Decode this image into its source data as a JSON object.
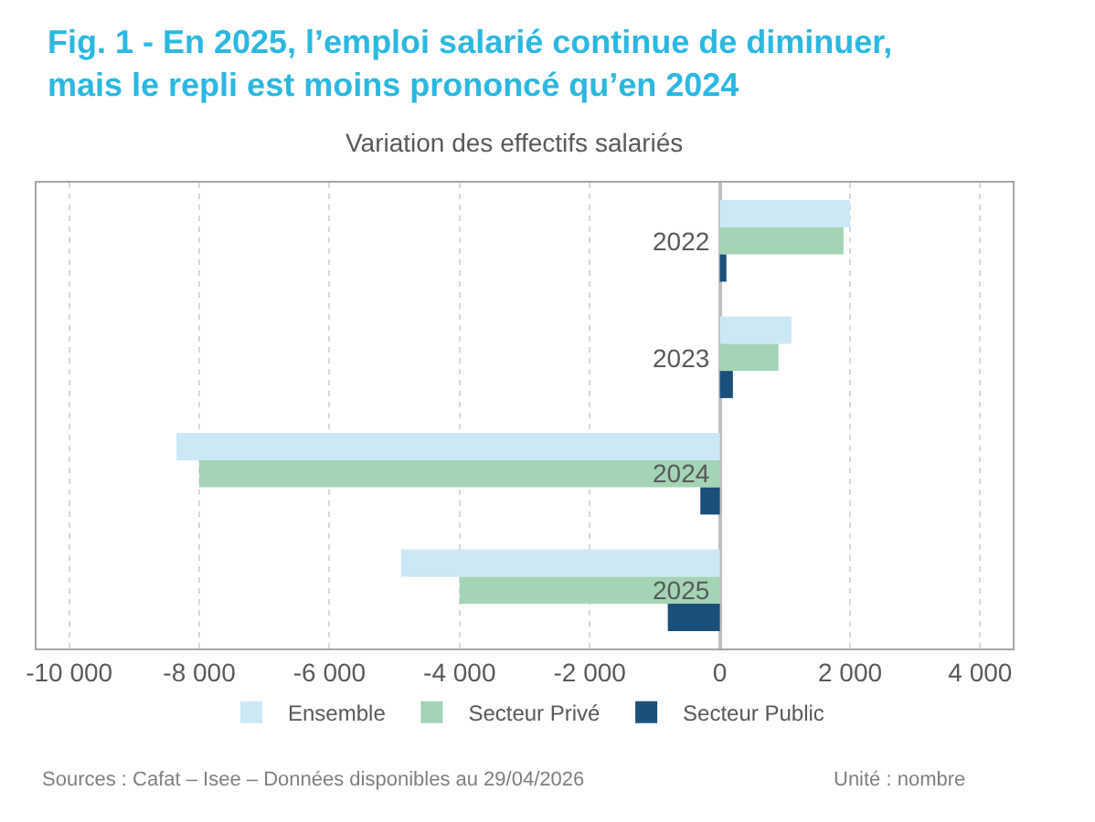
{
  "chart_data": {
    "type": "bar",
    "orientation": "horizontal",
    "title": "Fig. 1 - En 2025, l’emploi salarié continue de diminuer,\nmais le repli est moins prononcé qu’en 2024",
    "subtitle": "Variation des effectifs salariés",
    "categories": [
      "2022",
      "2023",
      "2024",
      "2025"
    ],
    "series": [
      {
        "name": "Ensemble",
        "color": "#cde8f5",
        "values": [
          2000,
          1100,
          -8350,
          -4900
        ]
      },
      {
        "name": "Secteur Privé",
        "color": "#a3d4b5",
        "values": [
          1900,
          900,
          -8000,
          -4000
        ]
      },
      {
        "name": "Secteur Public",
        "color": "#1a4f7a",
        "values": [
          100,
          200,
          -300,
          -800
        ]
      }
    ],
    "xlim": [
      -10500,
      4500
    ],
    "xticks": [
      {
        "value": -10000,
        "label": "-10 000"
      },
      {
        "value": -8000,
        "label": "-8 000"
      },
      {
        "value": -6000,
        "label": "-6 000"
      },
      {
        "value": -4000,
        "label": "-4 000"
      },
      {
        "value": -2000,
        "label": "-2 000"
      },
      0,
      {
        "value": 2000,
        "label": "2 000"
      },
      {
        "value": 4000,
        "label": "4 000"
      }
    ],
    "grid": "x",
    "legend": "bottom",
    "annotations": [
      "Sources : Cafat – Isee – Données disponibles au 29/04/2026",
      "Unité : nombre"
    ]
  }
}
